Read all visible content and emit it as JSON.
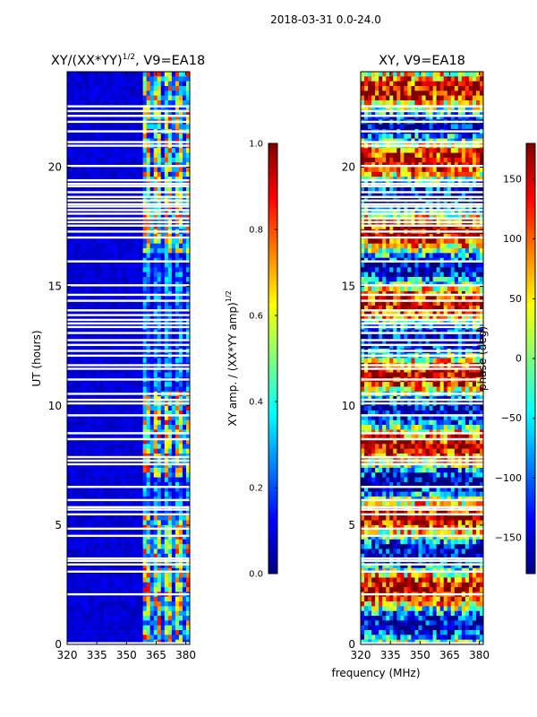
{
  "suptitle": "2018-03-31 0.0-24.0",
  "chart_data": [
    {
      "type": "heatmap",
      "title": "XY/(XX*YY)",
      "title_exponent": "1/2",
      "title_suffix": ", V9=EA18",
      "xlabel": "",
      "ylabel": "UT (hours)",
      "xlim": [
        320,
        382
      ],
      "ylim": [
        0,
        24
      ],
      "xticks": [
        320,
        335,
        350,
        365,
        380
      ],
      "yticks": [
        0,
        5,
        10,
        15,
        20
      ],
      "colormap": "jet",
      "signal_band_mhz": [
        358,
        382
      ],
      "value_range": [
        0.0,
        1.0
      ],
      "colorbar": {
        "label": "XY amp. / (XX*YY amp)",
        "label_exponent": "1/2",
        "range": [
          0.0,
          1.0
        ],
        "ticks": [
          "0.0",
          "0.2",
          "0.4",
          "0.6",
          "0.8",
          "1.0"
        ],
        "tick_values": [
          0.0,
          0.2,
          0.4,
          0.6,
          0.8,
          1.0
        ]
      }
    },
    {
      "type": "heatmap",
      "title": "XY, V9=EA18",
      "xlabel": "frequency (MHz)",
      "ylabel": "",
      "xlim": [
        320,
        382
      ],
      "ylim": [
        0,
        24
      ],
      "xticks": [
        320,
        335,
        350,
        365,
        380
      ],
      "yticks": [
        0,
        5,
        10,
        15,
        20
      ],
      "colormap": "jet",
      "value_range": [
        -180,
        180
      ],
      "colorbar": {
        "label": "phase (deg)",
        "range": [
          -180,
          180
        ],
        "ticks": [
          "−150",
          "−100",
          "−50",
          "0",
          "50",
          "100",
          "150"
        ],
        "tick_values": [
          -150,
          -100,
          -50,
          0,
          50,
          100,
          150
        ]
      }
    }
  ],
  "flagged_ut_hours": [
    0.05,
    2.1,
    3.05,
    3.35,
    3.5,
    3.6,
    4.55,
    4.85,
    5.45,
    5.65,
    5.75,
    6.05,
    6.6,
    7.55,
    7.7,
    7.85,
    8.6,
    8.85,
    9.6,
    10.1,
    10.25,
    10.5,
    11.1,
    11.55,
    11.7,
    12.1,
    12.3,
    12.55,
    12.75,
    13.05,
    13.3,
    13.45,
    13.6,
    13.8,
    14.0,
    14.4,
    14.65,
    15.05,
    16.05,
    17.05,
    17.3,
    17.55,
    17.7,
    17.85,
    18.05,
    18.2,
    18.35,
    18.45,
    18.6,
    18.75,
    18.95,
    19.2,
    19.3,
    19.45,
    20.05,
    20.9,
    21.05,
    21.5,
    21.9,
    22.15,
    22.35,
    22.55
  ]
}
